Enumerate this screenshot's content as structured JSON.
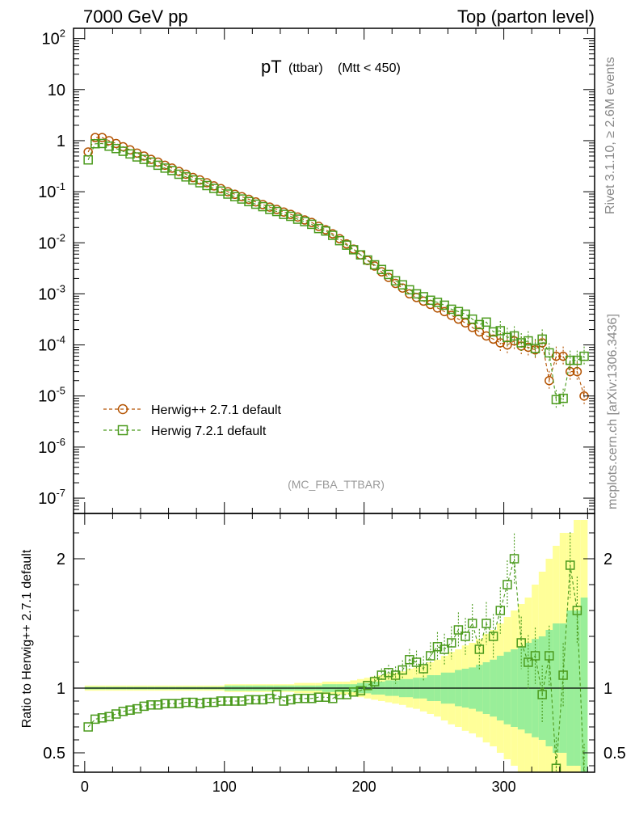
{
  "header": {
    "left": "7000 GeV pp",
    "right": "Top (parton level)"
  },
  "side": {
    "rivet": "Rivet 3.1.10, ≥ 2.6M events",
    "mcplots": "mcplots.cern.ch [arXiv:1306.3436]"
  },
  "chart_data": {
    "type": "scatter",
    "title_main": "pT",
    "title_sub1": "(ttbar)",
    "title_sub2": "(Mtt < 450)",
    "analysis": "(MC_FBA_TTBAR)",
    "ratio_ylabel": "Ratio to Herwig++ 2.7.1 default",
    "xlim": [
      -8,
      365
    ],
    "main_ylim_log10": [
      -7.3,
      2.2
    ],
    "main_yscale": "log",
    "ratio_ylim": [
      0.35,
      2.35
    ],
    "x_ticks": [
      "0",
      "100",
      "200",
      "300"
    ],
    "main_y_ticks": [
      "10^2",
      "10",
      "1",
      "10^-1",
      "10^-2",
      "10^-3",
      "10^-4",
      "10^-5",
      "10^-6",
      "10^-7"
    ],
    "ratio_y_ticks": [
      "0.5",
      "1",
      "2"
    ],
    "legend_position": "lower-left",
    "series": [
      {
        "name": "Herwig++ 2.7.1 default",
        "color": "#b35200",
        "marker": "circle",
        "x": [
          2.5,
          7.5,
          12.5,
          17.5,
          22.5,
          27.5,
          32.5,
          37.5,
          42.5,
          47.5,
          52.5,
          57.5,
          62.5,
          67.5,
          72.5,
          77.5,
          82.5,
          87.5,
          92.5,
          97.5,
          102.5,
          107.5,
          112.5,
          117.5,
          122.5,
          127.5,
          132.5,
          137.5,
          142.5,
          147.5,
          152.5,
          157.5,
          162.5,
          167.5,
          172.5,
          177.5,
          182.5,
          187.5,
          192.5,
          197.5,
          202.5,
          207.5,
          212.5,
          217.5,
          222.5,
          227.5,
          232.5,
          237.5,
          242.5,
          247.5,
          252.5,
          257.5,
          262.5,
          267.5,
          272.5,
          277.5,
          282.5,
          287.5,
          292.5,
          297.5,
          302.5,
          307.5,
          312.5,
          317.5,
          322.5,
          327.5,
          332.5,
          337.5,
          342.5,
          347.5,
          352.5,
          357.5
        ],
        "values": [
          0.6,
          1.15,
          1.15,
          1.0,
          0.88,
          0.76,
          0.66,
          0.57,
          0.5,
          0.43,
          0.38,
          0.33,
          0.29,
          0.25,
          0.22,
          0.19,
          0.17,
          0.15,
          0.13,
          0.115,
          0.1,
          0.089,
          0.08,
          0.071,
          0.063,
          0.056,
          0.05,
          0.045,
          0.04,
          0.036,
          0.032,
          0.028,
          0.025,
          0.021,
          0.018,
          0.015,
          0.012,
          0.0095,
          0.0075,
          0.0058,
          0.0045,
          0.0035,
          0.0027,
          0.0021,
          0.0016,
          0.0013,
          0.001,
          0.00085,
          0.00072,
          0.00062,
          0.00053,
          0.00045,
          0.00038,
          0.00032,
          0.00027,
          0.00022,
          0.00018,
          0.00015,
          0.00013,
          0.00011,
          0.0001,
          0.00012,
          9.5e-05,
          9e-05,
          8e-05,
          0.00011,
          2e-05,
          6e-05,
          6e-05,
          3e-05,
          3e-05,
          1e-05
        ]
      },
      {
        "name": "Herwig 7.2.1 default",
        "color": "#4a9a1c",
        "marker": "square",
        "x": [
          2.5,
          7.5,
          12.5,
          17.5,
          22.5,
          27.5,
          32.5,
          37.5,
          42.5,
          47.5,
          52.5,
          57.5,
          62.5,
          67.5,
          72.5,
          77.5,
          82.5,
          87.5,
          92.5,
          97.5,
          102.5,
          107.5,
          112.5,
          117.5,
          122.5,
          127.5,
          132.5,
          137.5,
          142.5,
          147.5,
          152.5,
          157.5,
          162.5,
          167.5,
          172.5,
          177.5,
          182.5,
          187.5,
          192.5,
          197.5,
          202.5,
          207.5,
          212.5,
          217.5,
          222.5,
          227.5,
          232.5,
          237.5,
          242.5,
          247.5,
          252.5,
          257.5,
          262.5,
          267.5,
          272.5,
          277.5,
          282.5,
          287.5,
          292.5,
          297.5,
          302.5,
          307.5,
          312.5,
          317.5,
          322.5,
          327.5,
          332.5,
          337.5,
          342.5,
          347.5,
          352.5,
          357.5
        ],
        "values": [
          0.42,
          0.87,
          0.88,
          0.78,
          0.7,
          0.62,
          0.55,
          0.48,
          0.43,
          0.38,
          0.33,
          0.29,
          0.26,
          0.22,
          0.195,
          0.17,
          0.15,
          0.132,
          0.116,
          0.103,
          0.09,
          0.08,
          0.072,
          0.064,
          0.057,
          0.051,
          0.045,
          0.041,
          0.036,
          0.033,
          0.029,
          0.026,
          0.023,
          0.019,
          0.017,
          0.014,
          0.011,
          0.009,
          0.0073,
          0.0058,
          0.0046,
          0.0037,
          0.003,
          0.0024,
          0.0018,
          0.0015,
          0.0012,
          0.001,
          0.00088,
          0.00075,
          0.00068,
          0.0006,
          0.0005,
          0.00045,
          0.0004,
          0.00032,
          0.00025,
          0.00028,
          0.00018,
          0.00019,
          0.00014,
          0.00015,
          0.00011,
          0.00012,
          8.5e-05,
          0.00013,
          7e-05,
          8.5e-06,
          9e-06,
          5e-05,
          5e-05,
          6e-05
        ]
      }
    ],
    "ratio_series": {
      "name": "Herwig 7.2.1 default",
      "values": [
        0.7,
        0.76,
        0.77,
        0.78,
        0.8,
        0.82,
        0.83,
        0.84,
        0.86,
        0.87,
        0.87,
        0.88,
        0.88,
        0.88,
        0.89,
        0.89,
        0.88,
        0.89,
        0.89,
        0.9,
        0.9,
        0.9,
        0.9,
        0.91,
        0.91,
        0.91,
        0.92,
        0.95,
        0.9,
        0.91,
        0.92,
        0.92,
        0.92,
        0.93,
        0.93,
        0.92,
        0.95,
        0.95,
        0.97,
        0.98,
        1.02,
        1.05,
        1.1,
        1.12,
        1.1,
        1.14,
        1.22,
        1.2,
        1.15,
        1.25,
        1.32,
        1.3,
        1.35,
        1.45,
        1.4,
        1.5,
        1.3,
        1.5,
        1.4,
        1.6,
        1.8,
        2.0,
        1.35,
        1.2,
        1.25,
        0.95,
        1.25,
        0.38,
        1.1,
        1.95,
        1.6,
        0.3
      ]
    },
    "band_inner": [
      0.01,
      0.01,
      0.01,
      0.01,
      0.01,
      0.01,
      0.01,
      0.01,
      0.01,
      0.01,
      0.01,
      0.01,
      0.01,
      0.01,
      0.01,
      0.01,
      0.01,
      0.01,
      0.01,
      0.01,
      0.02,
      0.02,
      0.02,
      0.02,
      0.02,
      0.02,
      0.02,
      0.02,
      0.02,
      0.02,
      0.02,
      0.02,
      0.02,
      0.02,
      0.03,
      0.03,
      0.03,
      0.03,
      0.03,
      0.04,
      0.04,
      0.05,
      0.05,
      0.06,
      0.06,
      0.07,
      0.07,
      0.08,
      0.08,
      0.1,
      0.1,
      0.12,
      0.12,
      0.14,
      0.15,
      0.16,
      0.18,
      0.2,
      0.22,
      0.25,
      0.28,
      0.3,
      0.32,
      0.35,
      0.38,
      0.4,
      0.45,
      0.5,
      0.5,
      0.6,
      0.6,
      0.7
    ],
    "band_outer": [
      0.02,
      0.02,
      0.02,
      0.02,
      0.02,
      0.02,
      0.02,
      0.02,
      0.02,
      0.02,
      0.02,
      0.02,
      0.02,
      0.02,
      0.02,
      0.02,
      0.02,
      0.02,
      0.02,
      0.02,
      0.03,
      0.03,
      0.03,
      0.03,
      0.03,
      0.03,
      0.03,
      0.03,
      0.03,
      0.03,
      0.04,
      0.04,
      0.04,
      0.04,
      0.05,
      0.05,
      0.05,
      0.05,
      0.06,
      0.07,
      0.08,
      0.09,
      0.1,
      0.11,
      0.12,
      0.13,
      0.15,
      0.16,
      0.18,
      0.2,
      0.22,
      0.25,
      0.28,
      0.3,
      0.33,
      0.35,
      0.38,
      0.42,
      0.45,
      0.5,
      0.55,
      0.6,
      0.65,
      0.7,
      0.8,
      0.9,
      1.0,
      1.1,
      1.2,
      1.2,
      1.3,
      1.3
    ]
  }
}
